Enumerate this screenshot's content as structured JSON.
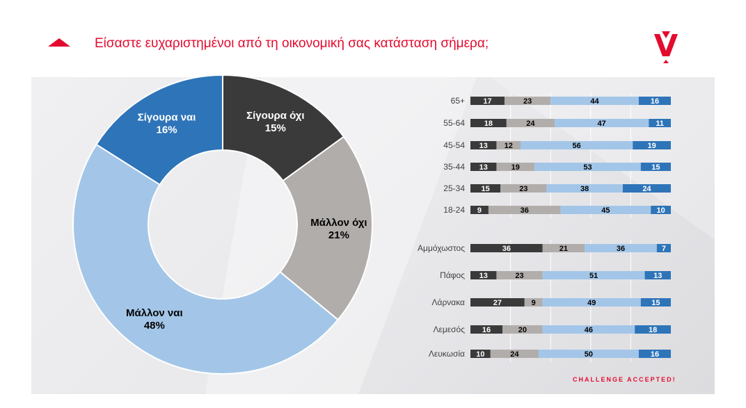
{
  "header": {
    "title": "Είσαστε ευχαριστημένοι από τη οικονομική σας κατάσταση σήμερα;",
    "tagline": "CHALLENGE ACCEPTED!"
  },
  "colors": {
    "accent": "#e30b2e",
    "definitely_no": "#3a3a3a",
    "rather_no": "#b1adab",
    "rather_yes": "#a3c6e8",
    "definitely_yes": "#2e74b9"
  },
  "chart_data": [
    {
      "type": "pie",
      "variant": "donut",
      "title": "",
      "slices": [
        {
          "label": "Σίγουρα όχι",
          "value": 15,
          "value_label": "15%",
          "color": "#3a3a3a",
          "text_color": "#ffffff"
        },
        {
          "label": "Μάλλον όχι",
          "value": 21,
          "value_label": "21%",
          "color": "#b1adab",
          "text_color": "#000000"
        },
        {
          "label": "Μάλλον ναι",
          "value": 48,
          "value_label": "48%",
          "color": "#a3c6e8",
          "text_color": "#000000"
        },
        {
          "label": "Σίγουρα ναι",
          "value": 16,
          "value_label": "16%",
          "color": "#2e74b9",
          "text_color": "#ffffff"
        }
      ]
    },
    {
      "type": "bar",
      "orientation": "horizontal",
      "stacked": true,
      "title": "",
      "xlim": [
        0,
        100
      ],
      "categories": [
        "65+",
        "55-64",
        "45-54",
        "35-44",
        "25-34",
        "18-24"
      ],
      "series": [
        {
          "values": [
            17,
            18,
            13,
            13,
            15,
            9
          ],
          "color": "#3a3a3a"
        },
        {
          "values": [
            23,
            24,
            12,
            19,
            23,
            36
          ],
          "color": "#b1adab"
        },
        {
          "values": [
            44,
            47,
            56,
            53,
            38,
            45
          ],
          "color": "#a3c6e8"
        },
        {
          "values": [
            16,
            11,
            19,
            15,
            24,
            10
          ],
          "color": "#2e74b9"
        }
      ]
    },
    {
      "type": "bar",
      "orientation": "horizontal",
      "stacked": true,
      "title": "",
      "xlim": [
        0,
        100
      ],
      "categories": [
        "Αμμόχωστος",
        "Πάφος",
        "Λάρνακα",
        "Λεμεσός",
        "Λευκωσία"
      ],
      "series": [
        {
          "values": [
            36,
            13,
            27,
            16,
            10
          ],
          "color": "#3a3a3a"
        },
        {
          "values": [
            21,
            23,
            9,
            20,
            24
          ],
          "color": "#b1adab"
        },
        {
          "values": [
            36,
            51,
            49,
            46,
            50
          ],
          "color": "#a3c6e8"
        },
        {
          "values": [
            7,
            13,
            15,
            18,
            16
          ],
          "color": "#2e74b9"
        }
      ]
    }
  ]
}
